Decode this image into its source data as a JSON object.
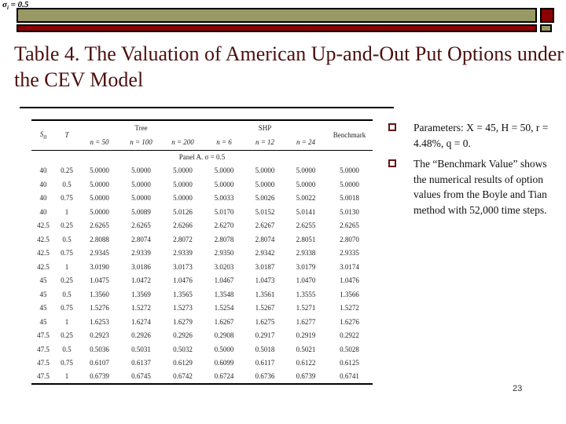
{
  "slide": {
    "corner_note": {
      "base": "σ",
      "sub": "i",
      "rest": " = 0.5"
    },
    "title": "Table 4. The Valuation of American Up-and-Out Put Options under the CEV Model",
    "page_number": "23"
  },
  "colors": {
    "tan": "#999966",
    "dark_red": "#8B0000",
    "title_text": "#4C1010",
    "bullet_border": "#641414"
  },
  "table": {
    "col_s0_base": "S",
    "col_s0_sub": "0",
    "col_t": "T",
    "group_tree": "Tree",
    "group_shp": "SHP",
    "subheaders": [
      "n = 50",
      "n = 100",
      "n = 200",
      "n = 6",
      "n = 12",
      "n = 24"
    ],
    "col_benchmark": "Benchmark",
    "panel_label": "Panel A.  σ = 0.5",
    "rows": [
      {
        "s0": "40",
        "t": "0.25",
        "values": [
          "5.0000",
          "5.0000",
          "5.0000",
          "5.0000",
          "5.0000",
          "5.0000",
          "5.0000"
        ]
      },
      {
        "s0": "40",
        "t": "0.5",
        "values": [
          "5.0000",
          "5.0000",
          "5.0000",
          "5.0000",
          "5.0000",
          "5.0000",
          "5.0000"
        ]
      },
      {
        "s0": "40",
        "t": "0.75",
        "values": [
          "5.0000",
          "5.0000",
          "5.0000",
          "5.0033",
          "5.0026",
          "5.0022",
          "5.0018"
        ]
      },
      {
        "s0": "40",
        "t": "1",
        "values": [
          "5.0000",
          "5.0089",
          "5.0126",
          "5.0170",
          "5.0152",
          "5.0141",
          "5.0130"
        ]
      },
      {
        "s0": "42.5",
        "t": "0.25",
        "values": [
          "2.6265",
          "2.6265",
          "2.6266",
          "2.6270",
          "2.6267",
          "2.6255",
          "2.6265"
        ]
      },
      {
        "s0": "42.5",
        "t": "0.5",
        "values": [
          "2.8088",
          "2.8074",
          "2.8072",
          "2.8078",
          "2.8074",
          "2.8051",
          "2.8070"
        ]
      },
      {
        "s0": "42.5",
        "t": "0.75",
        "values": [
          "2.9345",
          "2.9339",
          "2.9339",
          "2.9350",
          "2.9342",
          "2.9338",
          "2.9335"
        ]
      },
      {
        "s0": "42.5",
        "t": "1",
        "values": [
          "3.0190",
          "3.0186",
          "3.0173",
          "3.0203",
          "3.0187",
          "3.0179",
          "3.0174"
        ]
      },
      {
        "s0": "45",
        "t": "0.25",
        "values": [
          "1.0475",
          "1.0472",
          "1.0476",
          "1.0467",
          "1.0473",
          "1.0470",
          "1.0476"
        ]
      },
      {
        "s0": "45",
        "t": "0.5",
        "values": [
          "1.3560",
          "1.3569",
          "1.3565",
          "1.3548",
          "1.3561",
          "1.3555",
          "1.3566"
        ]
      },
      {
        "s0": "45",
        "t": "0.75",
        "values": [
          "1.5276",
          "1.5272",
          "1.5273",
          "1.5254",
          "1.5267",
          "1.5271",
          "1.5272"
        ]
      },
      {
        "s0": "45",
        "t": "1",
        "values": [
          "1.6253",
          "1.6274",
          "1.6279",
          "1.6267",
          "1.6275",
          "1.6277",
          "1.6276"
        ]
      },
      {
        "s0": "47.5",
        "t": "0.25",
        "values": [
          "0.2923",
          "0.2926",
          "0.2926",
          "0.2908",
          "0.2917",
          "0.2919",
          "0.2922"
        ]
      },
      {
        "s0": "47.5",
        "t": "0.5",
        "values": [
          "0.5036",
          "0.5031",
          "0.5032",
          "0.5000",
          "0.5018",
          "0.5021",
          "0.5028"
        ]
      },
      {
        "s0": "47.5",
        "t": "0.75",
        "values": [
          "0.6107",
          "0.6137",
          "0.6129",
          "0.6099",
          "0.6117",
          "0.6122",
          "0.6125"
        ]
      },
      {
        "s0": "47.5",
        "t": "1",
        "values": [
          "0.6739",
          "0.6745",
          "0.6742",
          "0.6724",
          "0.6736",
          "0.6739",
          "0.6741"
        ]
      }
    ]
  },
  "bullets": [
    {
      "text": "Parameters: X = 45, H = 50, r = 4.48%, q = 0."
    },
    {
      "text": "The “Benchmark Value” shows the numerical results of option values from the Boyle and Tian method with 52,000 time steps."
    }
  ]
}
